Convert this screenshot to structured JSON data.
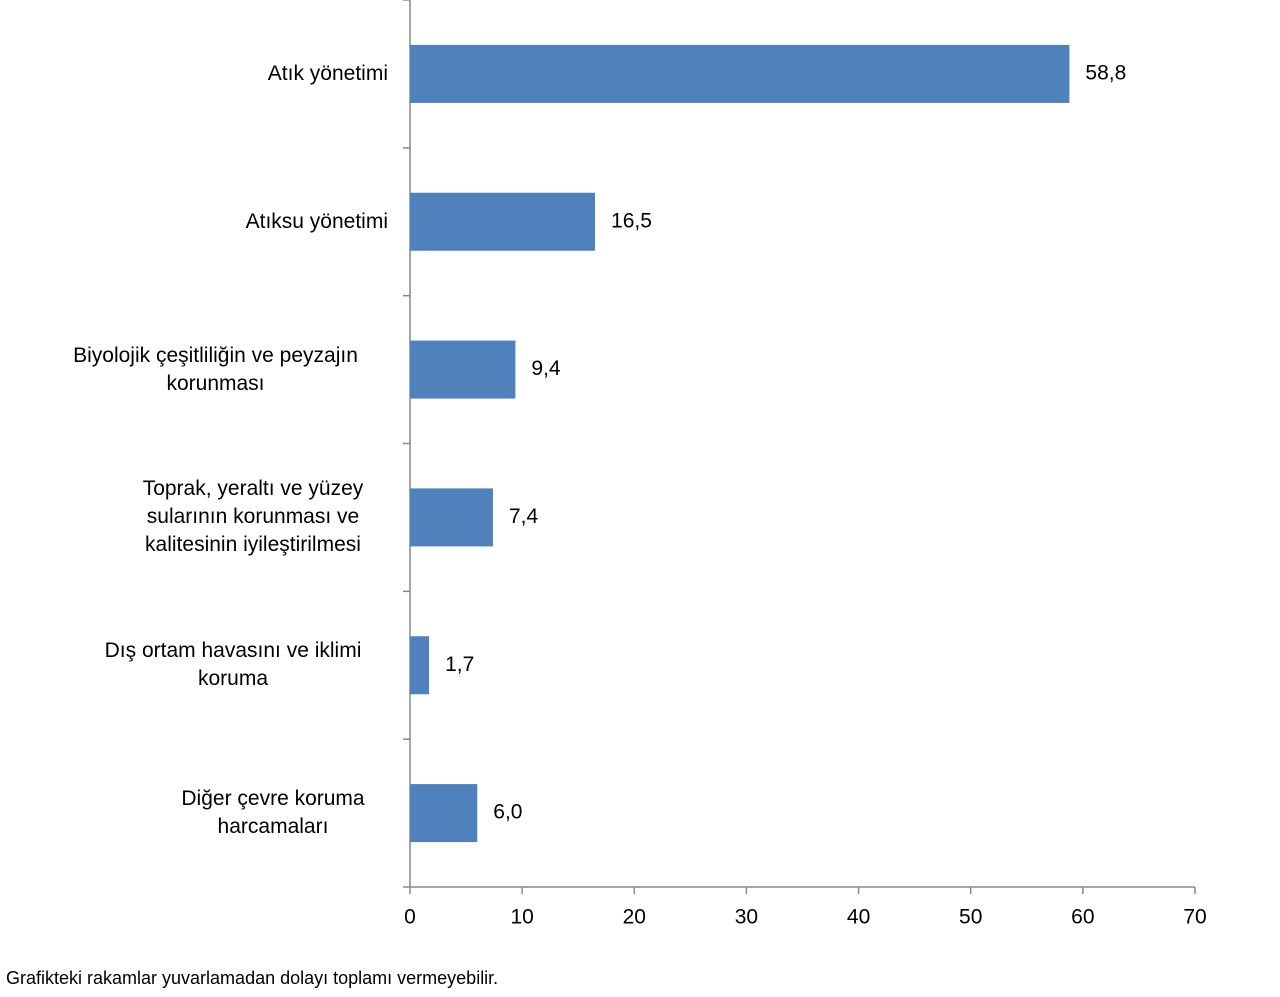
{
  "chart_data": {
    "type": "bar",
    "orientation": "horizontal",
    "categories": [
      "Atık yönetimi",
      "Atıksu yönetimi",
      "Biyolojik çeşitliliğin ve peyzajın korunması",
      "Toprak, yeraltı ve yüzey sularının korunması ve kalitesinin iyileştirilmesi",
      "Dış ortam havasını ve iklimi koruma",
      "Diğer çevre koruma harcamaları"
    ],
    "values": [
      58.8,
      16.5,
      9.4,
      7.4,
      1.7,
      6.0
    ],
    "value_labels": [
      "58,8",
      "16,5",
      "9,4",
      "7,4",
      "1,7",
      "6,0"
    ],
    "color": "#4f81bd",
    "xlim": [
      0,
      70
    ],
    "xticks": [
      0,
      10,
      20,
      30,
      40,
      50,
      60,
      70
    ],
    "note": "Grafikteki rakamlar yuvarlamadan dolayı toplamı vermeyebilir."
  }
}
